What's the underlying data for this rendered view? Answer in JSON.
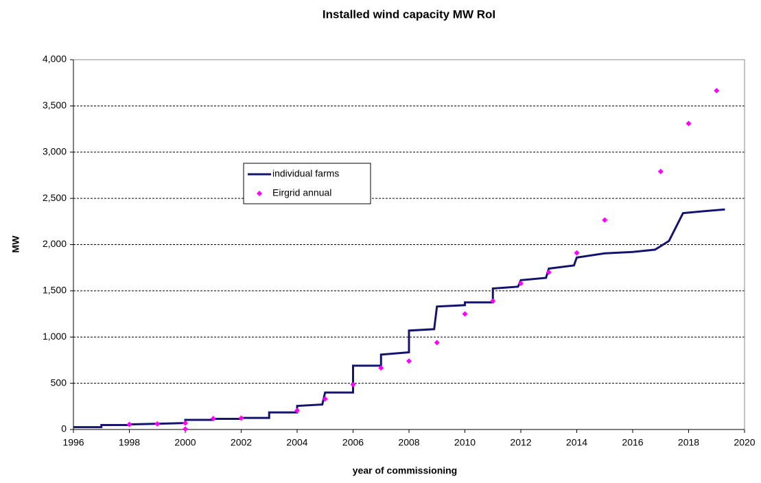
{
  "chart_data": {
    "type": "line",
    "title": "Installed wind capacity MW RoI",
    "x_label": "year of commissioning",
    "y_label": "MW",
    "xlim": [
      1996,
      2020
    ],
    "xticks": [
      1996,
      1998,
      2000,
      2002,
      2004,
      2006,
      2008,
      2010,
      2012,
      2014,
      2016,
      2018,
      2020
    ],
    "ylim": [
      0,
      4000
    ],
    "yticks": [
      0,
      500,
      {
        "value": 1000,
        "label": "1,000"
      },
      {
        "value": 1500,
        "label": "1,500"
      },
      {
        "value": 2000,
        "label": "2,000"
      },
      {
        "value": 2500,
        "label": "2,500"
      },
      {
        "value": 3000,
        "label": "3,000"
      },
      {
        "value": 3500,
        "label": "3,500"
      },
      {
        "value": 4000,
        "label": "4,000"
      }
    ],
    "grid": true,
    "series": [
      {
        "name": "individual farms",
        "color": "#14146e",
        "type": "line",
        "x": [
          1996,
          1997,
          1997,
          1998,
          1998,
          2000,
          2000,
          2001,
          2001,
          2002,
          2002,
          2003,
          2003,
          2004,
          2004,
          2004.9,
          2005,
          2006,
          2006,
          2007,
          2007,
          2008,
          2008,
          2008.9,
          2009,
          2010,
          2010,
          2011,
          2011,
          2011.9,
          2012,
          2012.9,
          2013,
          2013.9,
          2014,
          2015,
          2016,
          2016.8,
          2017.3,
          2017.8,
          2018.5,
          2019.3
        ],
        "values": [
          25,
          25,
          48,
          48,
          55,
          70,
          104,
          104,
          115,
          115,
          125,
          125,
          185,
          185,
          255,
          270,
          400,
          400,
          690,
          690,
          810,
          835,
          1070,
          1085,
          1330,
          1345,
          1375,
          1375,
          1525,
          1545,
          1615,
          1640,
          1740,
          1775,
          1860,
          1905,
          1920,
          1945,
          2040,
          2340,
          2360,
          2380
        ]
      },
      {
        "name": "Eirgrid annual",
        "color": "#ff00ff",
        "type": "scatter",
        "x": [
          1998,
          1999,
          2000,
          2000,
          2001,
          2002,
          2004,
          2005,
          2006,
          2007,
          2008,
          2009,
          2010,
          2011,
          2012,
          2013,
          2014,
          2015,
          2017,
          2018,
          2019
        ],
        "values": [
          55,
          60,
          70,
          5,
          118,
          122,
          205,
          330,
          485,
          665,
          740,
          940,
          1250,
          1390,
          1580,
          1700,
          1910,
          2265,
          2790,
          3310,
          3665
        ]
      }
    ]
  }
}
